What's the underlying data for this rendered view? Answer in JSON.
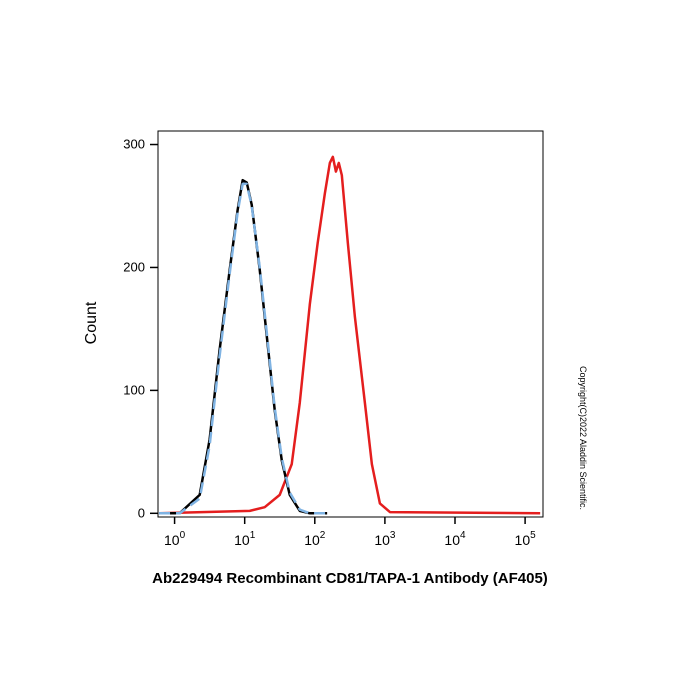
{
  "chart_data": {
    "type": "line",
    "x_label": "Ab229494 Recombinant CD81/TAPA-1 Antibody (AF405)",
    "y_label": "Count",
    "annotation": "Copyright(C)2022 Aladdin Scientific.",
    "log_x": true,
    "xlim": [
      0.58,
      180000
    ],
    "ylim": [
      -3,
      311
    ],
    "xticks": [
      {
        "value": 1,
        "label": "10",
        "power": "0"
      },
      {
        "value": 10,
        "label": "10",
        "power": "1"
      },
      {
        "value": 100,
        "label": "10",
        "power": "2"
      },
      {
        "value": 1000,
        "label": "10",
        "power": "3"
      },
      {
        "value": 10000,
        "label": "10",
        "power": "4"
      },
      {
        "value": 100000,
        "label": "10",
        "power": "5"
      }
    ],
    "yticks": [
      0,
      100,
      200,
      300
    ],
    "series": [
      {
        "color": "#e41e1e",
        "style": "solid",
        "x": [
          0.6,
          11.8,
          19.3,
          31.6,
          46.9,
          61.1,
          84.9,
          110,
          139,
          164,
          181,
          200,
          220,
          243,
          296,
          373,
          518,
          652,
          849,
          1180,
          164000
        ],
        "values": [
          0,
          2,
          5,
          15,
          40,
          90,
          170,
          220,
          260,
          285,
          290,
          278,
          285,
          275,
          220,
          160,
          90,
          40,
          8,
          1,
          0
        ]
      },
      {
        "color": "#000000",
        "style": "solid",
        "x": [
          0.6,
          1.18,
          2.28,
          3.16,
          4.39,
          6.11,
          7.94,
          9.36,
          10.7,
          12.6,
          16.4,
          21.3,
          26.8,
          33.8,
          43.9,
          61.1,
          84.9,
          150
        ],
        "values": [
          0,
          0,
          15,
          60,
          133,
          198,
          247,
          271,
          269,
          251,
          198,
          137,
          84,
          43,
          15,
          2,
          0,
          0
        ]
      },
      {
        "color": "#7fb3e3",
        "style": "dashed",
        "x": [
          0.6,
          1.18,
          2.28,
          3.16,
          4.39,
          6.11,
          7.94,
          9.36,
          10.7,
          12.6,
          16.4,
          21.3,
          26.8,
          33.8,
          43.9,
          61.1,
          84.9,
          150
        ],
        "values": [
          0,
          0,
          12,
          55,
          128,
          195,
          245,
          268,
          268,
          250,
          200,
          140,
          86,
          45,
          17,
          3,
          0,
          0
        ]
      }
    ]
  }
}
